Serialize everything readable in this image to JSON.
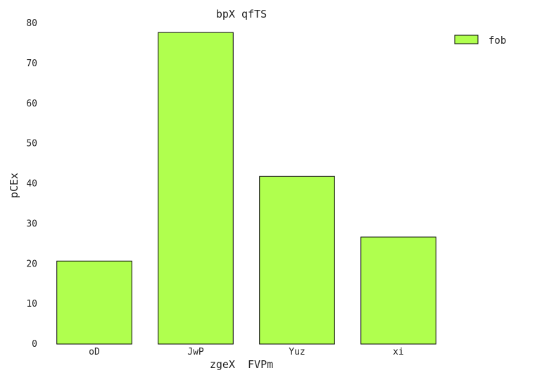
{
  "chart_data": {
    "type": "bar",
    "title": "bpX qfTS",
    "xlabel": "zgeX  FVPm",
    "ylabel": "pCEx",
    "categories": [
      "oD",
      "JwP",
      "Yuz",
      "xi"
    ],
    "series": [
      {
        "name": "fob",
        "values": [
          20.7,
          77.7,
          41.8,
          26.7
        ],
        "color": "#b0ff4e"
      }
    ],
    "ylim": [
      0,
      80
    ],
    "yticks": [
      0,
      10,
      20,
      30,
      40,
      50,
      60,
      70,
      80
    ],
    "grid": false,
    "legend_position": "top-right"
  }
}
